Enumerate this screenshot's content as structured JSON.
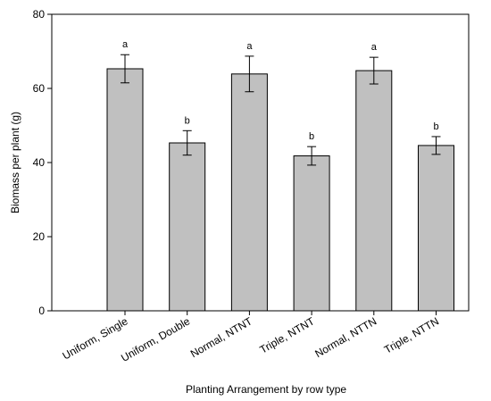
{
  "chart_data": {
    "type": "bar",
    "title": "",
    "xlabel": "Planting Arrangement by row type",
    "ylabel": "Biomass per plant (g)",
    "ylim": [
      0,
      80
    ],
    "yticks": [
      0,
      20,
      40,
      60,
      80
    ],
    "grid": false,
    "legend": "none",
    "bar_color": "#c0c0c0",
    "categories": [
      "Uniform, Single",
      "Uniform, Double",
      "Normal, NTNT",
      "Triple, NTNT",
      "Normal, NTTN",
      "Triple, NTTN"
    ],
    "values": [
      65.3,
      45.3,
      63.9,
      41.8,
      64.8,
      44.6
    ],
    "error": [
      3.8,
      3.3,
      4.8,
      2.5,
      3.6,
      2.4
    ],
    "significance": [
      "a",
      "b",
      "a",
      "b",
      "a",
      "b"
    ]
  }
}
